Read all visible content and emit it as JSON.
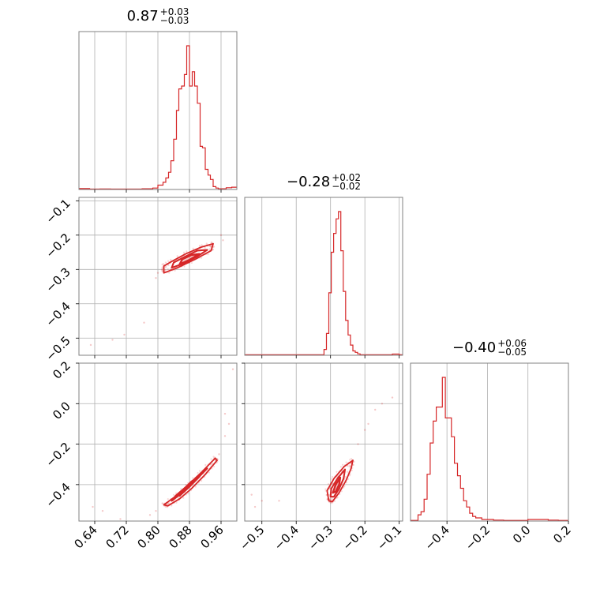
{
  "chart_data": {
    "type": "corner",
    "colors": {
      "main": "#d62728",
      "grid": "#b0b0b0",
      "frame": "#808080"
    },
    "grid": true,
    "parameters": [
      {
        "range": [
          0.6,
          1.0
        ],
        "ticks": [
          0.64,
          0.72,
          0.8,
          0.88,
          0.96
        ],
        "tick_labels": [
          "0.64",
          "0.72",
          "0.80",
          "0.88",
          "0.96"
        ],
        "title": {
          "median": "0.87",
          "plus": "+0.03",
          "minus": "−0.03"
        }
      },
      {
        "range": [
          -0.55,
          -0.09
        ],
        "ticks": [
          -0.5,
          -0.4,
          -0.3,
          -0.2,
          -0.1
        ],
        "tick_labels": [
          "−0.5",
          "−0.4",
          "−0.3",
          "−0.2",
          "−0.1"
        ],
        "tick_labels_y": [
          "−0.5",
          "−0.4",
          "−0.3",
          "−0.2",
          "−0.1"
        ],
        "title": {
          "median": "−0.28",
          "plus": "+0.02",
          "minus": "−0.02"
        }
      },
      {
        "range": [
          -0.58,
          0.2
        ],
        "ticks": [
          -0.4,
          -0.2,
          0.0,
          0.2
        ],
        "tick_labels": [
          "−0.4",
          "−0.2",
          "0.0",
          "0.2"
        ],
        "tick_labels_y": [
          "−0.4",
          "−0.2",
          "0.0",
          "0.2"
        ],
        "title": {
          "median": "−0.40",
          "plus": "+0.06",
          "minus": "−0.05"
        }
      }
    ],
    "histograms": [
      {
        "param": 0,
        "bins": [
          [
            0.6,
            0.6
          ],
          [
            0.627,
            0.3
          ],
          [
            0.653,
            0.4
          ],
          [
            0.68,
            0.3
          ],
          [
            0.707,
            0.3
          ],
          [
            0.733,
            0.3
          ],
          [
            0.76,
            0.5
          ],
          [
            0.787,
            1
          ],
          [
            0.8,
            3
          ],
          [
            0.813,
            5
          ],
          [
            0.82,
            8
          ],
          [
            0.827,
            12
          ],
          [
            0.833,
            20
          ],
          [
            0.84,
            35
          ],
          [
            0.847,
            55
          ],
          [
            0.853,
            70
          ],
          [
            0.86,
            72
          ],
          [
            0.867,
            80
          ],
          [
            0.873,
            100
          ],
          [
            0.88,
            72
          ],
          [
            0.887,
            82
          ],
          [
            0.893,
            72
          ],
          [
            0.9,
            60
          ],
          [
            0.907,
            30
          ],
          [
            0.913,
            29
          ],
          [
            0.92,
            14
          ],
          [
            0.927,
            10
          ],
          [
            0.933,
            7
          ],
          [
            0.94,
            2
          ],
          [
            0.947,
            1
          ],
          [
            0.953,
            0.5
          ],
          [
            0.967,
            0.5
          ],
          [
            0.973,
            1.2
          ],
          [
            0.987,
            1.6
          ],
          [
            1.0,
            1.6
          ]
        ]
      },
      {
        "param": 1,
        "bins": [
          [
            -0.55,
            0.3
          ],
          [
            -0.529,
            0.3
          ],
          [
            -0.508,
            0.3
          ],
          [
            -0.487,
            0.3
          ],
          [
            -0.466,
            0.3
          ],
          [
            -0.445,
            0.3
          ],
          [
            -0.424,
            0.3
          ],
          [
            -0.403,
            0.3
          ],
          [
            -0.382,
            0.3
          ],
          [
            -0.361,
            0.3
          ],
          [
            -0.34,
            0.3
          ],
          [
            -0.319,
            4
          ],
          [
            -0.312,
            15
          ],
          [
            -0.305,
            43
          ],
          [
            -0.298,
            71
          ],
          [
            -0.291,
            84
          ],
          [
            -0.284,
            94
          ],
          [
            -0.277,
            99
          ],
          [
            -0.27,
            72
          ],
          [
            -0.263,
            44
          ],
          [
            -0.256,
            24
          ],
          [
            -0.249,
            14
          ],
          [
            -0.242,
            7
          ],
          [
            -0.235,
            3
          ],
          [
            -0.228,
            2
          ],
          [
            -0.221,
            1
          ],
          [
            -0.214,
            0.3
          ],
          [
            -0.18,
            0.3
          ],
          [
            -0.16,
            0.3
          ],
          [
            -0.14,
            0.3
          ],
          [
            -0.12,
            0.8
          ],
          [
            -0.1,
            0.3
          ]
        ]
      },
      {
        "param": 2,
        "bins": [
          [
            -0.58,
            0.4
          ],
          [
            -0.543,
            4
          ],
          [
            -0.528,
            6
          ],
          [
            -0.513,
            14
          ],
          [
            -0.498,
            30
          ],
          [
            -0.483,
            50
          ],
          [
            -0.468,
            64
          ],
          [
            -0.453,
            73
          ],
          [
            -0.438,
            73
          ],
          [
            -0.423,
            92
          ],
          [
            -0.408,
            66
          ],
          [
            -0.393,
            66
          ],
          [
            -0.378,
            54
          ],
          [
            -0.363,
            37
          ],
          [
            -0.348,
            29
          ],
          [
            -0.333,
            21
          ],
          [
            -0.318,
            13
          ],
          [
            -0.303,
            9
          ],
          [
            -0.288,
            5
          ],
          [
            -0.273,
            3
          ],
          [
            -0.258,
            2
          ],
          [
            -0.243,
            2
          ],
          [
            -0.228,
            1
          ],
          [
            -0.2,
            1
          ],
          [
            -0.17,
            0.6
          ],
          [
            -0.12,
            0.4
          ],
          [
            -0.07,
            0.4
          ],
          [
            0.0,
            1
          ],
          [
            0.05,
            1
          ],
          [
            0.1,
            0.6
          ],
          [
            0.15,
            0.4
          ],
          [
            0.2,
            0.4
          ]
        ]
      }
    ],
    "scatter_2d": [
      {
        "x_param": 0,
        "y_param": 1,
        "outliers": [
          [
            0.63,
            -0.52
          ],
          [
            0.685,
            -0.505
          ],
          [
            0.715,
            -0.49
          ],
          [
            0.765,
            -0.455
          ],
          [
            0.8,
            -0.31
          ],
          [
            0.795,
            -0.325
          ],
          [
            0.96,
            -0.2
          ],
          [
            0.965,
            -0.215
          ],
          [
            0.935,
            -0.235
          ],
          [
            0.81,
            -0.3
          ]
        ],
        "contours": [
          [
            [
              0.815,
              -0.31
            ],
            [
              0.85,
              -0.295
            ],
            [
              0.895,
              -0.27
            ],
            [
              0.935,
              -0.245
            ],
            [
              0.94,
              -0.225
            ],
            [
              0.91,
              -0.235
            ],
            [
              0.87,
              -0.255
            ],
            [
              0.83,
              -0.28
            ],
            [
              0.815,
              -0.29
            ]
          ],
          [
            [
              0.835,
              -0.295
            ],
            [
              0.865,
              -0.283
            ],
            [
              0.9,
              -0.262
            ],
            [
              0.925,
              -0.243
            ],
            [
              0.9,
              -0.245
            ],
            [
              0.865,
              -0.265
            ],
            [
              0.84,
              -0.28
            ]
          ],
          [
            [
              0.855,
              -0.285
            ],
            [
              0.88,
              -0.272
            ],
            [
              0.905,
              -0.255
            ],
            [
              0.885,
              -0.258
            ],
            [
              0.862,
              -0.27
            ]
          ]
        ]
      },
      {
        "x_param": 0,
        "y_param": 2,
        "outliers": [
          [
            0.635,
            -0.51
          ],
          [
            0.66,
            -0.53
          ],
          [
            0.705,
            -0.57
          ],
          [
            0.78,
            -0.55
          ],
          [
            0.795,
            -0.53
          ],
          [
            0.955,
            -0.25
          ],
          [
            0.97,
            -0.16
          ],
          [
            0.98,
            -0.1
          ],
          [
            0.99,
            0.17
          ],
          [
            0.97,
            -0.05
          ]
        ],
        "contours": [
          [
            [
              0.815,
              -0.5
            ],
            [
              0.85,
              -0.45
            ],
            [
              0.88,
              -0.4
            ],
            [
              0.91,
              -0.34
            ],
            [
              0.945,
              -0.27
            ],
            [
              0.95,
              -0.28
            ],
            [
              0.92,
              -0.35
            ],
            [
              0.885,
              -0.42
            ],
            [
              0.855,
              -0.47
            ],
            [
              0.825,
              -0.505
            ]
          ],
          [
            [
              0.835,
              -0.48
            ],
            [
              0.865,
              -0.435
            ],
            [
              0.895,
              -0.38
            ],
            [
              0.925,
              -0.32
            ],
            [
              0.905,
              -0.35
            ],
            [
              0.875,
              -0.405
            ],
            [
              0.845,
              -0.455
            ]
          ],
          [
            [
              0.855,
              -0.455
            ],
            [
              0.88,
              -0.41
            ],
            [
              0.905,
              -0.36
            ],
            [
              0.885,
              -0.385
            ],
            [
              0.862,
              -0.43
            ]
          ]
        ]
      },
      {
        "x_param": 1,
        "y_param": 2,
        "outliers": [
          [
            -0.53,
            -0.45
          ],
          [
            -0.45,
            -0.48
          ],
          [
            -0.52,
            -0.51
          ],
          [
            -0.5,
            -0.48
          ],
          [
            -0.17,
            -0.03
          ],
          [
            -0.2,
            -0.13
          ],
          [
            -0.15,
            0.0
          ],
          [
            -0.12,
            0.03
          ],
          [
            -0.22,
            -0.2
          ],
          [
            -0.19,
            -0.1
          ]
        ],
        "contours": [
          [
            [
              -0.305,
              -0.48
            ],
            [
              -0.31,
              -0.43
            ],
            [
              -0.29,
              -0.37
            ],
            [
              -0.26,
              -0.31
            ],
            [
              -0.235,
              -0.28
            ],
            [
              -0.24,
              -0.32
            ],
            [
              -0.255,
              -0.38
            ],
            [
              -0.275,
              -0.44
            ],
            [
              -0.295,
              -0.485
            ]
          ],
          [
            [
              -0.3,
              -0.46
            ],
            [
              -0.298,
              -0.42
            ],
            [
              -0.28,
              -0.37
            ],
            [
              -0.258,
              -0.325
            ],
            [
              -0.262,
              -0.37
            ],
            [
              -0.275,
              -0.42
            ],
            [
              -0.29,
              -0.46
            ]
          ],
          [
            [
              -0.293,
              -0.44
            ],
            [
              -0.285,
              -0.4
            ],
            [
              -0.272,
              -0.365
            ],
            [
              -0.275,
              -0.4
            ],
            [
              -0.285,
              -0.435
            ]
          ]
        ]
      }
    ]
  }
}
